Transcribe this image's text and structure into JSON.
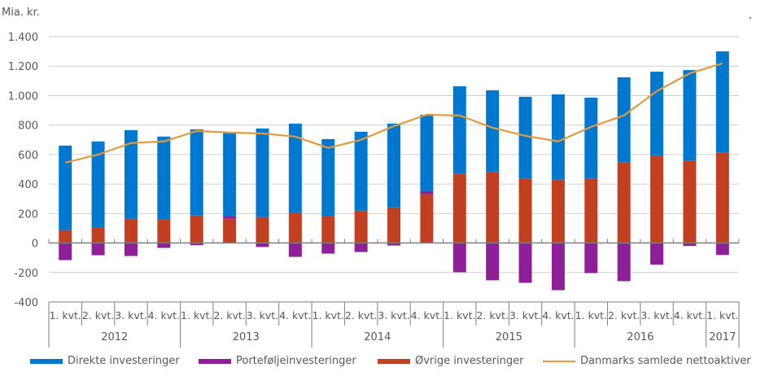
{
  "chart_data": {
    "type": "bar",
    "stacked": true,
    "unit_label": "Mia. kr.",
    "title": "",
    "xlabel": "",
    "ylabel": "Mia. kr.",
    "ylim": [
      -400,
      1400
    ],
    "yticks": [
      -400,
      -200,
      0,
      200,
      400,
      600,
      800,
      1000,
      1200,
      1400
    ],
    "ytick_labels": [
      "-400",
      "-200",
      "0",
      "200",
      "400",
      "600",
      "800",
      "1.000",
      "1.200",
      "1.400"
    ],
    "grid": true,
    "legend_position": "bottom",
    "categories": [
      "1. kvt.",
      "2. kvt.",
      "3. kvt.",
      "4. kvt.",
      "1. kvt.",
      "2. kvt.",
      "3. kvt.",
      "4. kvt.",
      "1. kvt.",
      "2. kvt.",
      "3. kvt.",
      "4. kvt.",
      "1. kvt.",
      "2. kvt.",
      "3. kvt.",
      "4. kvt.",
      "1. kvt.",
      "2. kvt.",
      "3. kvt.",
      "4. kvt.",
      "1. kvt."
    ],
    "year_groups": [
      {
        "label": "2012",
        "count": 4
      },
      {
        "label": "2013",
        "count": 4
      },
      {
        "label": "2014",
        "count": 4
      },
      {
        "label": "2015",
        "count": 4
      },
      {
        "label": "2016",
        "count": 4
      },
      {
        "label": "2017",
        "count": 1
      }
    ],
    "series": [
      {
        "name": "Direkte investeringer",
        "type": "bar",
        "color": "#0078D0",
        "values": [
          573,
          584,
          601,
          562,
          584,
          567,
          601,
          606,
          523,
          535,
          568,
          517,
          595,
          557,
          557,
          578,
          551,
          579,
          573,
          617,
          688
        ]
      },
      {
        "name": "Porteføljeinvesteringer",
        "type": "bar",
        "color": "#8E1F98",
        "values": [
          -116,
          -83,
          -88,
          -33,
          -15,
          17,
          -27,
          -94,
          -72,
          -61,
          -17,
          22,
          -198,
          -253,
          -270,
          -320,
          -204,
          -259,
          -147,
          -20,
          -81
        ]
      },
      {
        "name": "Øvrige investeringer",
        "type": "bar",
        "color": "#C33F22",
        "values": [
          88,
          105,
          165,
          160,
          187,
          165,
          176,
          204,
          182,
          220,
          242,
          331,
          468,
          479,
          435,
          430,
          435,
          545,
          589,
          556,
          612
        ]
      },
      {
        "name": "Danmarks samlede nettoaktiver",
        "type": "line",
        "color": "#E39A3A",
        "values": [
          545,
          600,
          678,
          689,
          760,
          749,
          743,
          722,
          645,
          700,
          793,
          870,
          865,
          782,
          727,
          689,
          788,
          865,
          1030,
          1151,
          1218
        ]
      }
    ]
  },
  "legend": [
    {
      "label": "Direkte investeringer",
      "color": "#0078D0",
      "kind": "bar"
    },
    {
      "label": "Porteføljeinvesteringer",
      "color": "#8E1F98",
      "kind": "bar"
    },
    {
      "label": "Øvrige investeringer",
      "color": "#C33F22",
      "kind": "bar"
    },
    {
      "label": "Danmarks samlede nettoaktiver",
      "color": "#E39A3A",
      "kind": "line"
    }
  ]
}
